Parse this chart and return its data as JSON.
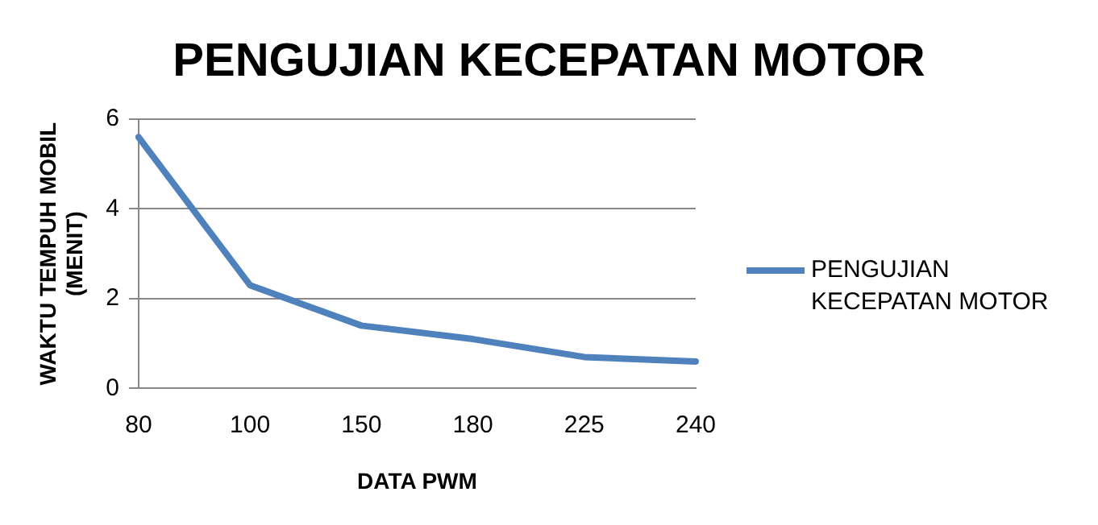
{
  "chart_data": {
    "type": "line",
    "title": "PENGUJIAN KECEPATAN MOTOR",
    "xlabel": "DATA PWM",
    "ylabel": "WAKTU TEMPUH MOBIL\n(MENIT)",
    "categories": [
      "80",
      "100",
      "150",
      "180",
      "225",
      "240"
    ],
    "series": [
      {
        "name": "PENGUJIAN KECEPATAN MOTOR",
        "color": "#4f81bd",
        "values": [
          5.6,
          2.3,
          1.4,
          1.1,
          0.7,
          0.6
        ]
      }
    ],
    "ylim": [
      0,
      6
    ],
    "yticks": [
      0,
      2,
      4,
      6
    ],
    "grid": "y",
    "legend": "right",
    "marker": "none",
    "line_style": "solid"
  }
}
